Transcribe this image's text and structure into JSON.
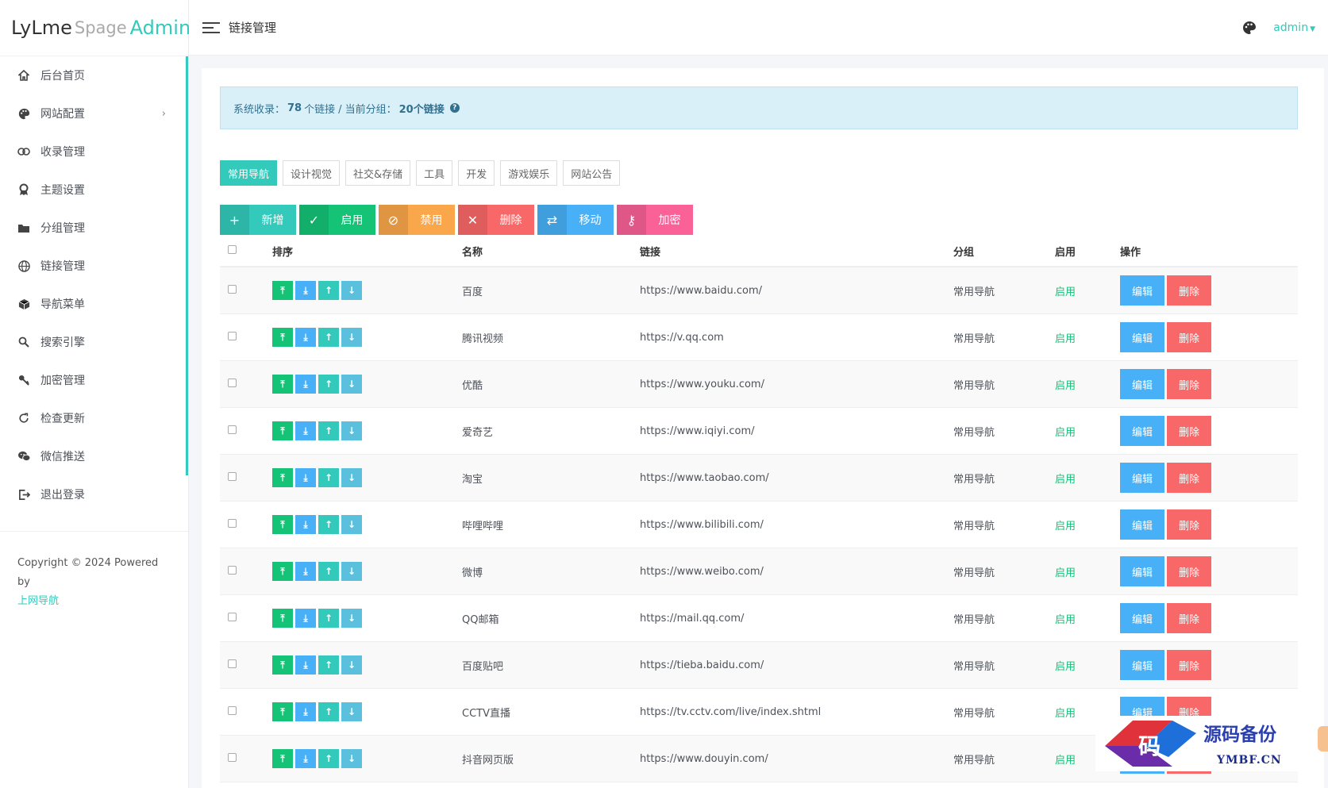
{
  "logo": {
    "part1": "LyLme",
    "part2": "Spage",
    "part3": "Admin"
  },
  "sidebar": {
    "items": [
      {
        "label": "后台首页",
        "icon": "home-icon"
      },
      {
        "label": "网站配置",
        "icon": "palette-icon",
        "has_submenu": true
      },
      {
        "label": "收录管理",
        "icon": "link-icon"
      },
      {
        "label": "主题设置",
        "icon": "award-icon"
      },
      {
        "label": "分组管理",
        "icon": "folder-icon"
      },
      {
        "label": "链接管理",
        "icon": "globe-icon"
      },
      {
        "label": "导航菜单",
        "icon": "cube-icon"
      },
      {
        "label": "搜索引擎",
        "icon": "search-icon"
      },
      {
        "label": "加密管理",
        "icon": "key-icon"
      },
      {
        "label": "检查更新",
        "icon": "refresh-icon"
      },
      {
        "label": "微信推送",
        "icon": "wechat-icon"
      },
      {
        "label": "退出登录",
        "icon": "logout-icon"
      }
    ],
    "submenu_caret": "›",
    "copyright": "Copyright © 2024 Powered by",
    "copyright_link": "上网导航"
  },
  "header": {
    "title": "链接管理",
    "user": "admin"
  },
  "alert": {
    "prefix": "系统收录：",
    "total_count": "78",
    "total_unit": "个链接",
    "separator": "/ 当前分组：",
    "group_count": "20个链接",
    "help": "?"
  },
  "tabs": [
    "常用导航",
    "设计视觉",
    "社交&存储",
    "工具",
    "开发",
    "游戏娱乐",
    "网站公告"
  ],
  "toolbar": [
    {
      "label": "新增",
      "icon": "+",
      "icon_name": "plus-icon",
      "color": "#33cabb"
    },
    {
      "label": "启用",
      "icon": "✓",
      "icon_name": "check-icon",
      "color": "#15c377"
    },
    {
      "label": "禁用",
      "icon": "⊘",
      "icon_name": "ban-icon",
      "color": "#faa64b"
    },
    {
      "label": "删除",
      "icon": "✕",
      "icon_name": "close-icon",
      "color": "#f96868"
    },
    {
      "label": "移动",
      "icon": "⇄",
      "icon_name": "move-icon",
      "color": "#48b0f7"
    },
    {
      "label": "加密",
      "icon": "⚷",
      "icon_name": "key-icon",
      "color": "#f96197"
    }
  ],
  "table": {
    "headers": [
      "排序",
      "名称",
      "链接",
      "分组",
      "启用",
      "操作"
    ],
    "sort_glyphs": [
      "⤒",
      "⤓",
      "↑",
      "↓"
    ],
    "edit_label": "编辑",
    "delete_label": "删除",
    "rows": [
      {
        "name": "百度",
        "url": "https://www.baidu.com/",
        "group": "常用导航",
        "status": "启用"
      },
      {
        "name": "腾讯视频",
        "url": "https://v.qq.com",
        "group": "常用导航",
        "status": "启用"
      },
      {
        "name": "优酷",
        "url": "https://www.youku.com/",
        "group": "常用导航",
        "status": "启用"
      },
      {
        "name": "爱奇艺",
        "url": "https://www.iqiyi.com/",
        "group": "常用导航",
        "status": "启用"
      },
      {
        "name": "淘宝",
        "url": "https://www.taobao.com/",
        "group": "常用导航",
        "status": "启用"
      },
      {
        "name": "哔哩哔哩",
        "url": "https://www.bilibili.com/",
        "group": "常用导航",
        "status": "启用"
      },
      {
        "name": "微博",
        "url": "https://www.weibo.com/",
        "group": "常用导航",
        "status": "启用"
      },
      {
        "name": "QQ邮箱",
        "url": "https://mail.qq.com/",
        "group": "常用导航",
        "status": "启用"
      },
      {
        "name": "百度贴吧",
        "url": "https://tieba.baidu.com/",
        "group": "常用导航",
        "status": "启用"
      },
      {
        "name": "CCTV直播",
        "url": "https://tv.cctv.com/live/index.shtml",
        "group": "常用导航",
        "status": "启用"
      },
      {
        "name": "抖音网页版",
        "url": "https://www.douyin.com/",
        "group": "常用导航",
        "status": "启用"
      }
    ]
  },
  "watermark": {
    "title": "源码备份",
    "domain": "YMBF.CN",
    "glyph": "码"
  }
}
